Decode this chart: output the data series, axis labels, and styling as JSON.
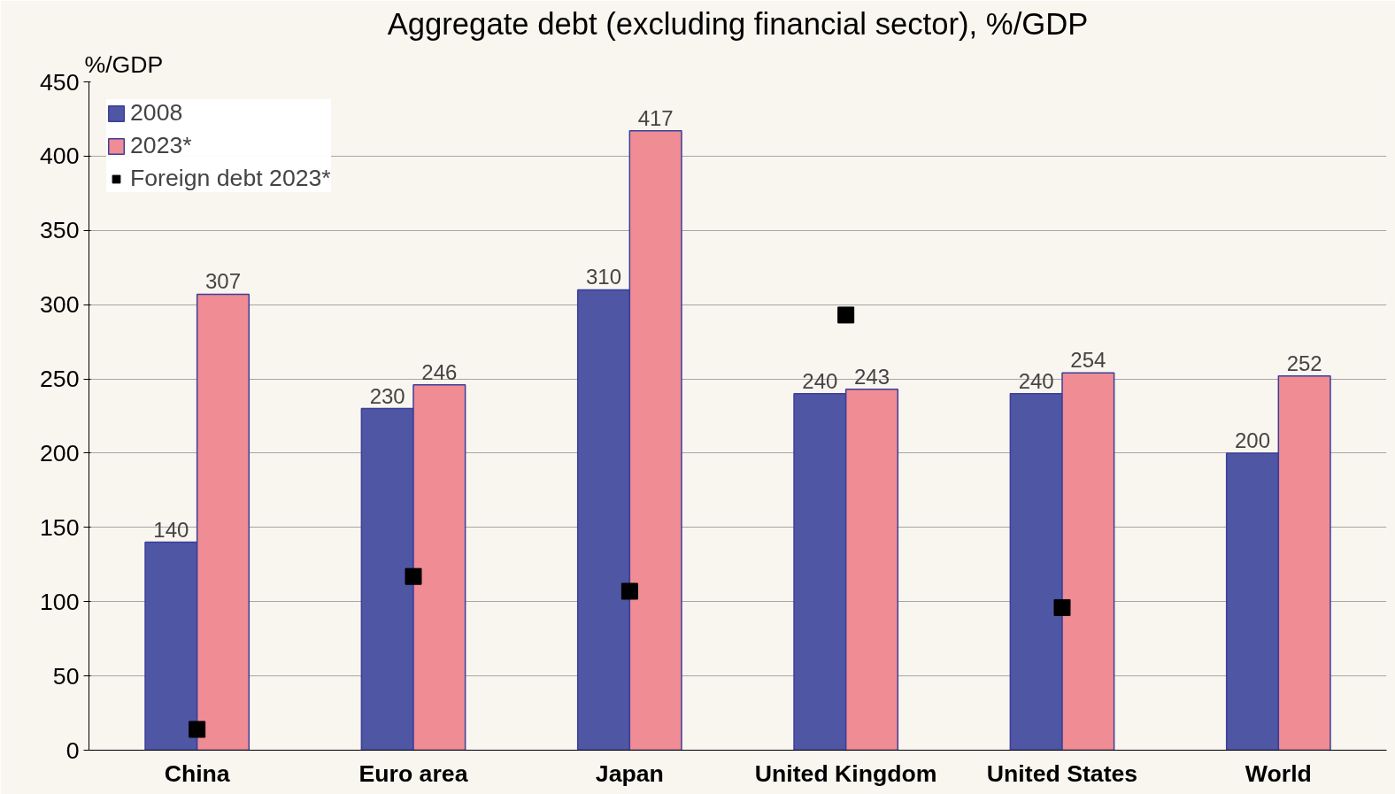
{
  "chart_data": {
    "type": "bar",
    "title": "Aggregate debt (excluding financial sector), %/GDP",
    "ylabel": "%/GDP",
    "categories": [
      "China",
      "Euro area",
      "Japan",
      "United Kingdom",
      "United States",
      "World"
    ],
    "series": [
      {
        "name": "2008",
        "color": "#4f56a4",
        "values": [
          140,
          230,
          310,
          240,
          240,
          200
        ],
        "value_labels": [
          "140",
          "230",
          "310",
          "240",
          "240",
          "200"
        ]
      },
      {
        "name": "2023*",
        "color": "#f08c93",
        "values": [
          307,
          246,
          417,
          243,
          254,
          252
        ],
        "value_labels": [
          "307",
          "246",
          "417",
          "243",
          "254",
          "252"
        ]
      },
      {
        "name": "Foreign debt 2023*",
        "type": "scatter",
        "marker": "square",
        "color": "#000000",
        "values": [
          14,
          117,
          107,
          293,
          96,
          null
        ]
      }
    ],
    "ylim": [
      0,
      450
    ],
    "yticks": [
      0,
      50,
      100,
      150,
      200,
      250,
      300,
      350,
      400,
      450
    ],
    "grid": "y",
    "legend": "top left"
  }
}
